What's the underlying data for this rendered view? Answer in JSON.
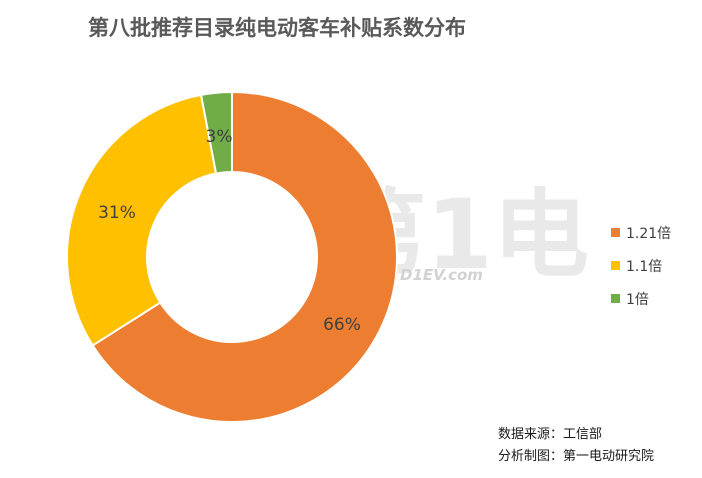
{
  "title": "第八批推荐目录纯电动客车补贴系数分布",
  "chart_data": {
    "type": "pie",
    "donut": true,
    "categories": [
      "1.21倍",
      "1.1倍",
      "1倍"
    ],
    "values": [
      66,
      31,
      3
    ],
    "labels": [
      "66%",
      "31%",
      "3%"
    ],
    "colors": [
      "#ED7D31",
      "#FFC000",
      "#70AD47"
    ],
    "legend_position": "right"
  },
  "source": {
    "data_source": "数据来源：工信部",
    "made_by": "分析制图：第一电动研究院"
  },
  "watermark": {
    "text": "第1电动",
    "url": "D1EV.com"
  }
}
